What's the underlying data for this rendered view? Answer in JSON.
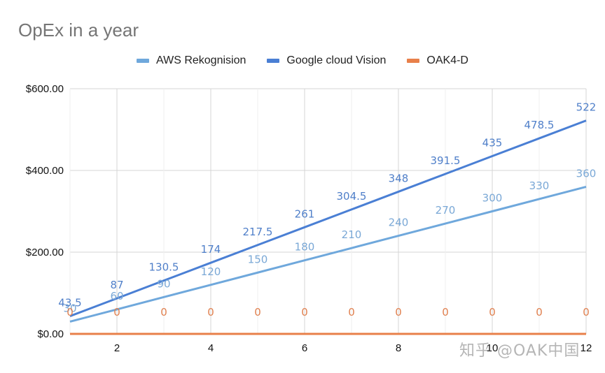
{
  "chart_data": {
    "type": "line",
    "title": "OpEx in a year",
    "xlabel": "",
    "ylabel": "",
    "x": [
      1,
      2,
      3,
      4,
      5,
      6,
      7,
      8,
      9,
      10,
      11,
      12
    ],
    "xticks": [
      2,
      4,
      6,
      8,
      10,
      12
    ],
    "xlim": [
      1,
      12
    ],
    "ylim": [
      0,
      600
    ],
    "yticks": [
      0,
      200,
      400,
      600
    ],
    "ytick_labels": [
      "$0.00",
      "$200.00",
      "$400.00",
      "$600.00"
    ],
    "grid": true,
    "legend_position": "top",
    "series": [
      {
        "name": "AWS Rekognision",
        "color": "#6fa8dc",
        "values": [
          30,
          60,
          90,
          120,
          150,
          180,
          210,
          240,
          270,
          300,
          330,
          360
        ],
        "data_labels": [
          "30",
          "60",
          "90",
          "120",
          "150",
          "180",
          "210",
          "240",
          "270",
          "300",
          "330",
          "360"
        ]
      },
      {
        "name": "Google cloud Vision",
        "color": "#4a7fd4",
        "values": [
          43.5,
          87,
          130.5,
          174,
          217.5,
          261,
          304.5,
          348,
          391.5,
          435,
          478.5,
          522
        ],
        "data_labels": [
          "43.5",
          "87",
          "130.5",
          "174",
          "217.5",
          "261",
          "304.5",
          "348",
          "391.5",
          "435",
          "478.5",
          "522"
        ]
      },
      {
        "name": "OAK4-D",
        "color": "#e8804a",
        "values": [
          0,
          0,
          0,
          0,
          0,
          0,
          0,
          0,
          0,
          0,
          0,
          0
        ],
        "data_labels": [
          "0",
          "0",
          "0",
          "0",
          "0",
          "0",
          "0",
          "0",
          "0",
          "0",
          "0",
          "0"
        ]
      }
    ]
  },
  "watermark": "知乎 @OAK中国"
}
